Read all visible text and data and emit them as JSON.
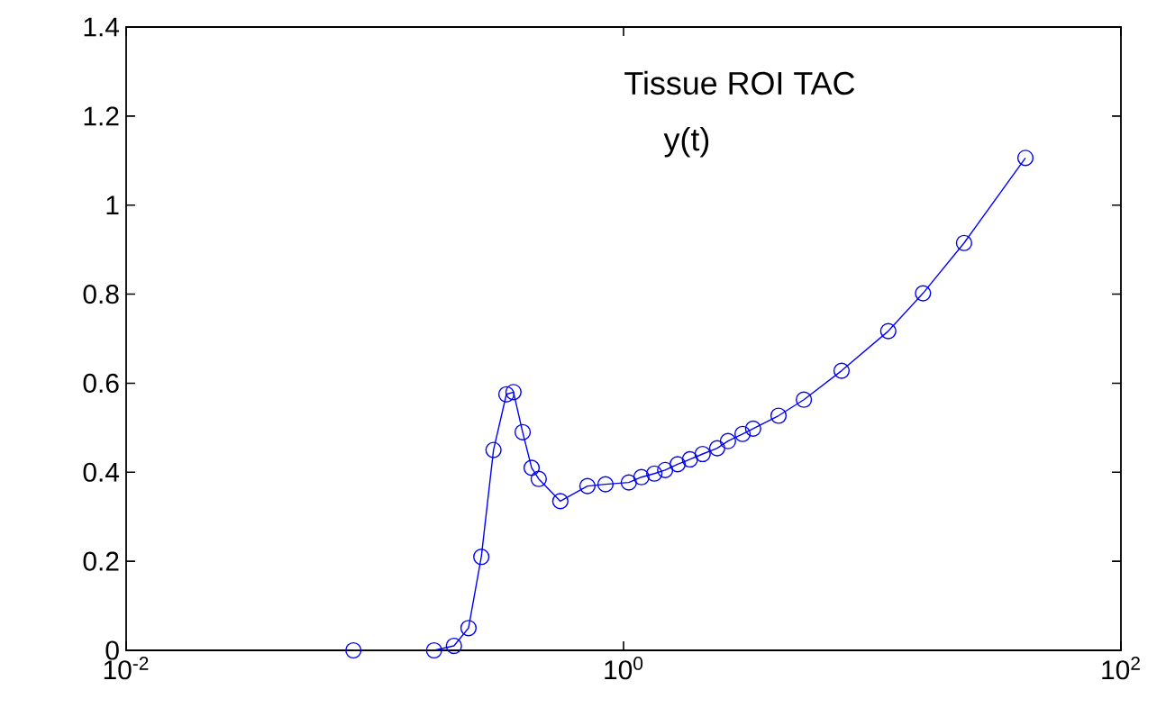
{
  "chart_data": {
    "type": "line",
    "log": "x",
    "marker": "circle",
    "line_style": "solid",
    "annotations": [
      "Tissue ROI TAC",
      "y(t)"
    ],
    "xlim": [
      0.01,
      100
    ],
    "ylim": [
      0,
      1.4
    ],
    "xticks": [
      {
        "value": 0.01,
        "label": "10$^{-2}$"
      },
      {
        "value": 1,
        "label": "10$^{0}$"
      },
      {
        "value": 100,
        "label": "10$^{2}$"
      }
    ],
    "yticks": [
      0,
      0.2,
      0.4,
      0.6,
      0.8,
      1,
      1.2,
      1.4
    ],
    "series": [
      {
        "color": "#0000ff",
        "x": [
          0.082,
          0.173,
          0.208,
          0.238,
          0.268,
          0.3,
          0.338,
          0.361,
          0.393,
          0.427,
          0.456,
          0.557,
          0.716,
          0.846,
          1.05,
          1.18,
          1.33,
          1.47,
          1.65,
          1.85,
          2.08,
          2.38,
          2.63,
          3.01,
          3.32,
          4.2,
          5.31,
          7.53,
          11.6,
          16.0,
          23.4,
          41.3
        ],
        "values": [
          0,
          0,
          0.01,
          0.05,
          0.21,
          0.45,
          0.575,
          0.58,
          0.49,
          0.41,
          0.385,
          0.335,
          0.369,
          0.373,
          0.377,
          0.389,
          0.397,
          0.405,
          0.418,
          0.429,
          0.441,
          0.454,
          0.47,
          0.486,
          0.498,
          0.527,
          0.563,
          0.628,
          0.717,
          0.802,
          0.915,
          1.106
        ]
      }
    ]
  }
}
